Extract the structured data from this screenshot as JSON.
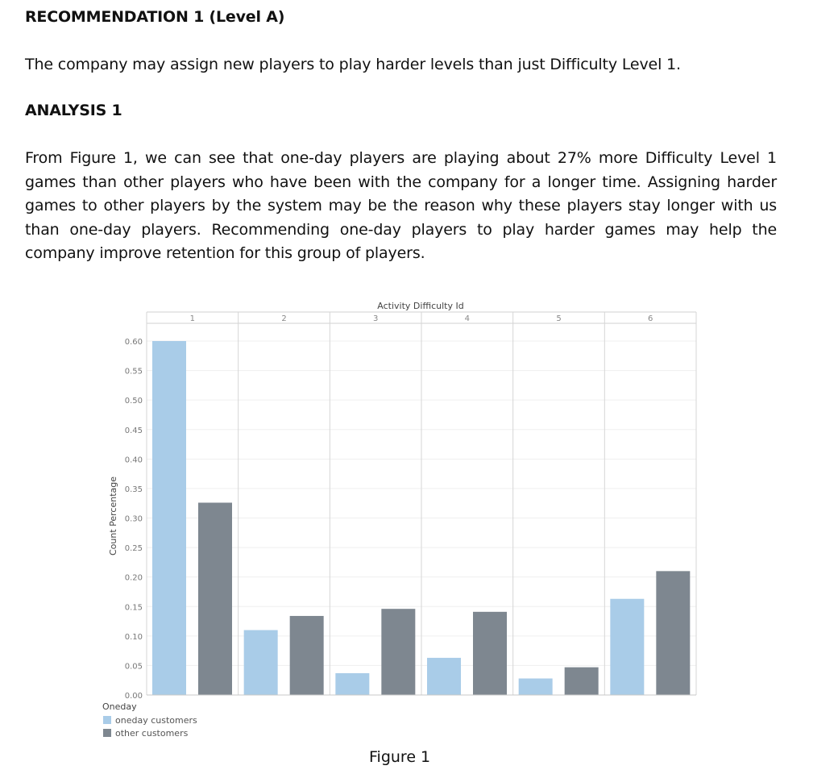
{
  "recommendation": {
    "heading": "RECOMMENDATION 1 (Level A)",
    "text": "The company may assign new players to play harder levels than just Difficulty Level 1."
  },
  "analysis": {
    "heading": "ANALYSIS 1",
    "text": "From Figure 1, we can see that one-day players are playing about 27% more Difficulty Level 1 games than other players who have been with the company for a longer time. Assigning harder games to other players by the system may be the reason why these players stay longer with us than one-day players. Recommending one-day players to play harder games may help the company improve retention for this group of players."
  },
  "figure_caption": "Figure 1",
  "chart_data": {
    "type": "bar",
    "title": "",
    "column_header": "Activity Difficulty Id",
    "xlabel": "",
    "ylabel": "Count Percentage",
    "categories": [
      "1",
      "2",
      "3",
      "4",
      "5",
      "6"
    ],
    "series": [
      {
        "name": "oneday customers",
        "color": "#a9cce8",
        "values": [
          0.6,
          0.11,
          0.037,
          0.063,
          0.028,
          0.163
        ]
      },
      {
        "name": "other customers",
        "color": "#7e8790",
        "values": [
          0.326,
          0.134,
          0.146,
          0.141,
          0.047,
          0.21
        ]
      }
    ],
    "ylim": [
      0,
      0.6
    ],
    "yticks": [
      "0.00",
      "0.05",
      "0.10",
      "0.15",
      "0.20",
      "0.25",
      "0.30",
      "0.35",
      "0.40",
      "0.45",
      "0.50",
      "0.55",
      "0.60"
    ],
    "legend": {
      "title": "Oneday",
      "position": "bottom-left"
    },
    "grid": true
  }
}
